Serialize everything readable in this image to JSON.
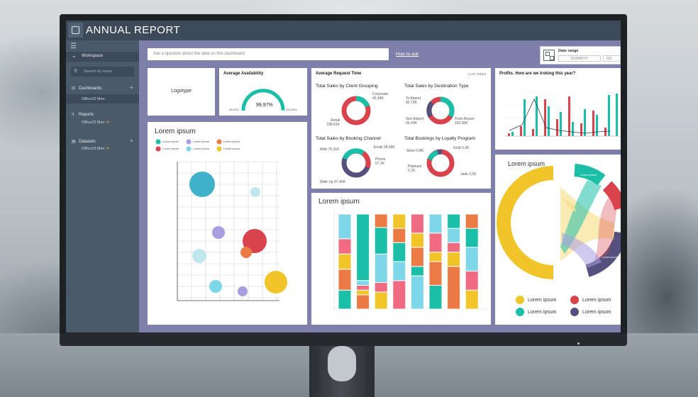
{
  "app": {
    "title": "ANNUAL REPORT"
  },
  "sidebar": {
    "section_label": "Workspace",
    "search_placeholder": "Search by name",
    "groups": [
      {
        "label": "Dashboards",
        "items": [
          {
            "label": "Office23 Men"
          }
        ]
      },
      {
        "label": "Reports",
        "items": [
          {
            "label": "Office23 Men"
          }
        ]
      },
      {
        "label": "Datasets",
        "items": [
          {
            "label": "Office23 Men"
          }
        ]
      }
    ]
  },
  "ask": {
    "placeholder": "Ask a question about the data on this dashboard",
    "link": "How to ask"
  },
  "date_range": {
    "label": "Date range",
    "from_placeholder": "DD/MM/YY",
    "to_placeholder": "DD"
  },
  "logotype": {
    "label": "Logotype"
  },
  "availability": {
    "title": "Average Availability",
    "value_label": "99,97%",
    "value": 99.97,
    "min_label": "95,00%",
    "max_label": "100,00%"
  },
  "request_time": {
    "title": "Average Request Time",
    "period": "LAST WEEK",
    "charts": [
      {
        "title": "Total Sales by Client Grouping",
        "labels": [
          "Corporate 49,94K",
          "Retail 198,61K"
        ]
      },
      {
        "title": "Total Sales by Destination Type",
        "labels": [
          "To Airport 82,73K",
          "Non Airport 35,43K",
          "From Airport 102,00K"
        ]
      },
      {
        "title": "Total Sales by Booking Channel",
        "labels": [
          "Web 75,31K",
          "Email 28,66K",
          "Phone 67,1K",
          "Walk Up 67,46K"
        ]
      },
      {
        "title": "Total Bookings by Loyalty Program",
        "labels": [
          "Silver 0,8K",
          "Gold 0,2K",
          "Platinum 0,7K",
          "Jade 3,2K"
        ]
      }
    ]
  },
  "profits": {
    "title": "Profits. How are we troking this year?"
  },
  "scatter_card": {
    "title": "Lorem ipsum",
    "legend": [
      "Lorem ipsum",
      "Lorem ipsum",
      "Lorem ipsum",
      "Lorem ipsum",
      "Lorem ipsum",
      "Lorem ipsum"
    ]
  },
  "stacked_card": {
    "title": "Lorem ipsum"
  },
  "chord_card": {
    "title": "Lorem ipsum",
    "legend": [
      "Lorem ipsum",
      "Lorem ipsum",
      "Lorem ipsum",
      "Lorem ipsum"
    ]
  },
  "colors": {
    "red": "#d9434c",
    "teal": "#1bbfa8",
    "yellow": "#f1c52a",
    "purple": "#55507d",
    "blue": "#3fb1c8",
    "lavender": "#a99fe0",
    "orange": "#ec7a45",
    "sky": "#7ed6e9",
    "pink": "#f06a82",
    "gold": "#e8cc55"
  }
}
